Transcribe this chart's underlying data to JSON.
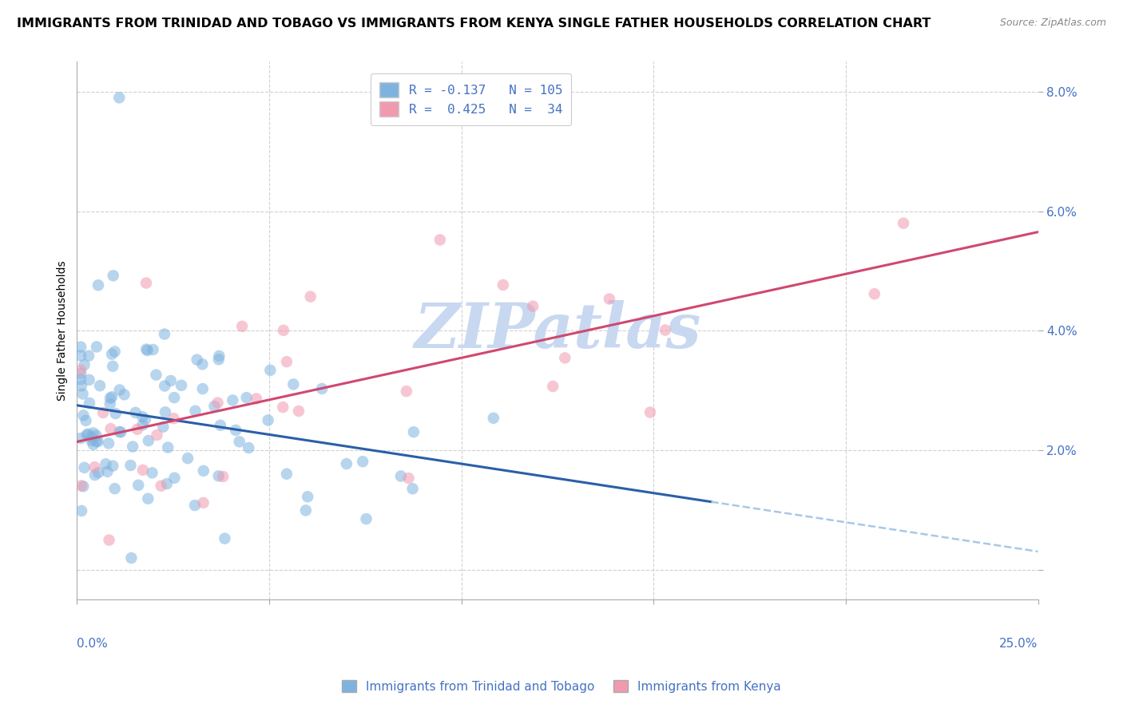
{
  "title": "IMMIGRANTS FROM TRINIDAD AND TOBAGO VS IMMIGRANTS FROM KENYA SINGLE FATHER HOUSEHOLDS CORRELATION CHART",
  "source": "Source: ZipAtlas.com",
  "ylabel": "Single Father Households",
  "xlim": [
    0.0,
    0.25
  ],
  "ylim": [
    -0.005,
    0.085
  ],
  "yticks": [
    0.0,
    0.02,
    0.04,
    0.06,
    0.08
  ],
  "ytick_labels": [
    "",
    "2.0%",
    "4.0%",
    "6.0%",
    "8.0%"
  ],
  "xticks": [
    0.0,
    0.05,
    0.1,
    0.15,
    0.2,
    0.25
  ],
  "watermark": "ZIPatlas",
  "watermark_color": "#c8d8f0",
  "grid_color": "#d0d0d0",
  "title_fontsize": 11.5,
  "axis_label_fontsize": 10,
  "tick_fontsize": 11,
  "scatter_alpha": 0.55,
  "scatter_size": 110,
  "blue_color": "#7eb3e0",
  "pink_color": "#f09ab0",
  "blue_line_color": "#2a5fa8",
  "pink_line_color": "#d04870",
  "blue_dash_color": "#a8c8e8",
  "R_blue": -0.137,
  "N_blue": 105,
  "R_pink": 0.425,
  "N_pink": 34,
  "seed": 42,
  "legend_blue_label": "R = -0.137   N = 105",
  "legend_pink_label": "R =  0.425   N =  34",
  "bottom_blue_label": "Immigrants from Trinidad and Tobago",
  "bottom_pink_label": "Immigrants from Kenya"
}
